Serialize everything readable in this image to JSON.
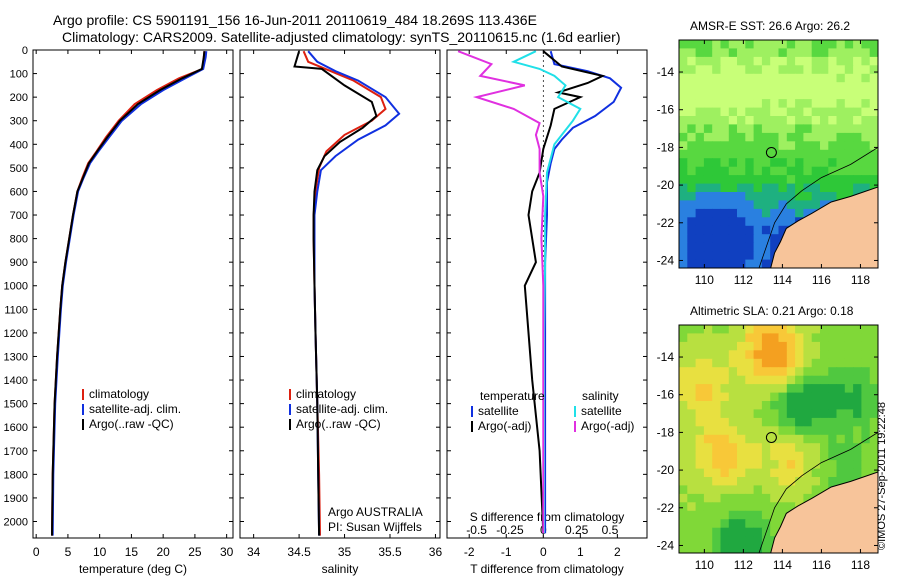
{
  "header": {
    "title_line1": "Argo profile: CS 5901191_156 16-Jun-2011 20110619_484 18.269S 113.436E",
    "title_line2": "Climatology: CARS2009. Satellite-adjusted climatology: synTS_20110615.nc (1.6d earlier)"
  },
  "credit": "©IMOS 27-Sep-2011 19:22:48",
  "colors": {
    "climatology": "#dd2010",
    "satellite": "#1030e0",
    "argo": "#000000",
    "salinity_satellite": "#20e0e8",
    "salinity_argo": "#e030e0",
    "land": "#f7c49a"
  },
  "chart_data": [
    {
      "type": "line",
      "xlabel": "temperature (deg C)",
      "ylabel": "",
      "xlim": [
        -0.5,
        31
      ],
      "ylim": [
        2070,
        0
      ],
      "xticks": [
        "0",
        "5",
        "10",
        "15",
        "20",
        "25",
        "30"
      ],
      "yticks": [
        "0",
        "100",
        "200",
        "300",
        "400",
        "500",
        "600",
        "700",
        "800",
        "900",
        "1000",
        "1100",
        "1200",
        "1300",
        "1400",
        "1500",
        "1600",
        "1700",
        "1800",
        "1900",
        "2000"
      ],
      "legend": [
        "climatology",
        "satellite-adj. clim.",
        "Argo(..raw -QC)"
      ],
      "series": [
        {
          "name": "climatology",
          "color": "#dd2010",
          "x": [
            26.5,
            26.4,
            26.2,
            22.5,
            19,
            15.5,
            13,
            11,
            9.5,
            8.2,
            7.3,
            6.5,
            5.8,
            5.2,
            4.6,
            4.1,
            3.8,
            3.3,
            2.9,
            2.6,
            2.5
          ],
          "y": [
            5,
            30,
            80,
            120,
            170,
            230,
            300,
            370,
            430,
            480,
            540,
            600,
            700,
            800,
            900,
            1000,
            1100,
            1300,
            1500,
            1800,
            2060
          ]
        },
        {
          "name": "satellite-adj. clim.",
          "color": "#1030e0",
          "x": [
            26.8,
            26.7,
            26.3,
            23.5,
            20,
            16.5,
            13.5,
            11.5,
            9.8,
            8.5,
            7.5,
            6.6,
            5.9,
            5.3,
            4.7,
            4.2,
            3.9,
            3.4,
            3,
            2.7,
            2.6
          ],
          "y": [
            5,
            30,
            80,
            120,
            170,
            230,
            300,
            370,
            430,
            480,
            540,
            600,
            700,
            800,
            900,
            1000,
            1100,
            1300,
            1500,
            1800,
            2060
          ]
        },
        {
          "name": "Argo(..raw -QC)",
          "color": "#000000",
          "x": [
            26.5,
            26.4,
            26.1,
            23,
            19.5,
            16,
            13.2,
            11.2,
            9.6,
            8.3,
            7.4,
            6.5,
            5.8,
            5.2,
            4.6,
            4.1,
            3.8,
            3.3,
            2.9,
            2.6,
            2.5
          ],
          "y": [
            5,
            30,
            80,
            120,
            170,
            230,
            300,
            370,
            430,
            480,
            540,
            600,
            700,
            800,
            900,
            1000,
            1100,
            1300,
            1500,
            1800,
            2060
          ]
        }
      ]
    },
    {
      "type": "line",
      "xlabel": "salinity",
      "ylabel": "",
      "xlim": [
        33.85,
        36.05
      ],
      "ylim": [
        2070,
        0
      ],
      "xticks": [
        "34",
        "34.5",
        "35",
        "35.5",
        "36"
      ],
      "legend": [
        "climatology",
        "satellite-adj. clim.",
        "Argo(..raw -QC)"
      ],
      "annotations": [
        "Argo AUSTRALIA",
        "PI: Susan Wijffels"
      ],
      "series": [
        {
          "name": "climatology",
          "color": "#dd2010",
          "x": [
            34.55,
            34.6,
            34.85,
            35.1,
            35.4,
            35.45,
            35.3,
            35.0,
            34.8,
            34.72,
            34.68,
            34.66,
            34.66,
            34.67,
            34.68,
            34.7,
            34.72,
            34.73
          ],
          "y": [
            5,
            50,
            90,
            130,
            200,
            250,
            300,
            360,
            430,
            500,
            600,
            700,
            800,
            1000,
            1200,
            1500,
            1800,
            2060
          ]
        },
        {
          "name": "satellite-adj. clim.",
          "color": "#1030e0",
          "x": [
            34.6,
            34.7,
            34.9,
            35.15,
            35.45,
            35.6,
            35.45,
            35.15,
            34.9,
            34.74,
            34.7,
            34.67,
            34.67,
            34.67,
            34.68,
            34.7,
            34.71,
            34.72
          ],
          "y": [
            5,
            50,
            90,
            130,
            200,
            270,
            320,
            380,
            450,
            510,
            600,
            700,
            800,
            1000,
            1200,
            1500,
            1800,
            2060
          ]
        },
        {
          "name": "Argo(..raw -QC)",
          "color": "#000000",
          "x": [
            34.5,
            34.45,
            34.75,
            35.0,
            35.3,
            35.35,
            35.2,
            34.95,
            34.78,
            34.7,
            34.67,
            34.66,
            34.66,
            34.67,
            34.68,
            34.7,
            34.71,
            34.72
          ],
          "y": [
            5,
            70,
            80,
            150,
            220,
            280,
            330,
            390,
            450,
            510,
            600,
            700,
            800,
            1000,
            1200,
            1500,
            1800,
            2060
          ]
        }
      ]
    },
    {
      "type": "line",
      "xlabel": "T difference from climatology",
      "xlabel2": "S difference from climatology",
      "ylabel": "",
      "xlim": [
        -2.6,
        2.8
      ],
      "ylim": [
        2070,
        0
      ],
      "xticks": [
        "-2",
        "-1",
        "0",
        "1",
        "2"
      ],
      "xticks_top": [
        "-0.5",
        "-0.25",
        "0",
        "0.25",
        "0.5"
      ],
      "legend_headers": [
        "temperature",
        "salinity"
      ],
      "legend": [
        "satellite",
        "Argo(-adj)",
        "satellite",
        "Argo(-adj)"
      ],
      "series": [
        {
          "name": "satellite",
          "group": "temperature",
          "color": "#1030e0",
          "x": [
            0.2,
            0.3,
            1.2,
            1.8,
            2.1,
            1.9,
            1.4,
            0.8,
            0.5,
            0.3,
            0.2,
            0.1,
            0.1,
            0.05,
            0.05,
            0.05,
            0.05
          ],
          "y": [
            5,
            60,
            90,
            120,
            160,
            220,
            280,
            330,
            380,
            420,
            480,
            560,
            700,
            900,
            1200,
            1600,
            2050
          ]
        },
        {
          "name": "Argo(-adj)",
          "group": "temperature",
          "color": "#000000",
          "x": [
            0,
            0.5,
            1.6,
            1.2,
            0.4,
            1.0,
            0.3,
            0.2,
            0,
            -0.1,
            -0.3,
            -0.4,
            -0.2,
            -0.5,
            -0.3,
            -0.1,
            0
          ],
          "y": [
            5,
            70,
            110,
            140,
            180,
            200,
            250,
            320,
            420,
            520,
            600,
            700,
            900,
            1000,
            1400,
            1700,
            2050
          ]
        },
        {
          "name": "satellite",
          "group": "salinity",
          "color": "#20e0e8",
          "x": [
            -0.2,
            -0.8,
            -0.1,
            0.3,
            0.6,
            0.4,
            1.0,
            0.8,
            0.3,
            0.1,
            0.05,
            0.05,
            0.02,
            0.02,
            0.02
          ],
          "y": [
            5,
            50,
            80,
            110,
            150,
            200,
            250,
            300,
            400,
            520,
            700,
            900,
            1200,
            1600,
            2050
          ]
        },
        {
          "name": "Argo(-adj)",
          "group": "salinity",
          "color": "#e030e0",
          "x": [
            -2.3,
            -1.4,
            -1.7,
            -0.5,
            -1.8,
            -0.8,
            -0.1,
            -0.2,
            -0.1,
            -0.1,
            0,
            -0.05,
            0,
            0,
            0
          ],
          "y": [
            5,
            60,
            110,
            150,
            200,
            250,
            310,
            360,
            420,
            520,
            620,
            800,
            1000,
            1400,
            2050
          ]
        }
      ]
    },
    {
      "type": "heatmap",
      "title": "AMSR-E SST: 26.6 Argo: 26.2",
      "xticks": [
        "110",
        "112",
        "114",
        "116",
        "118"
      ],
      "yticks": [
        "-14",
        "-16",
        "-18",
        "-20",
        "-22",
        "-24"
      ],
      "xlim": [
        108.7,
        118.9
      ],
      "ylim": [
        -24.4,
        -12.3
      ],
      "argo_position": {
        "lon": 113.436,
        "lat": -18.269
      }
    },
    {
      "type": "heatmap",
      "title": "Altimetric SLA: 0.21 Argo: 0.18",
      "xticks": [
        "110",
        "112",
        "114",
        "116",
        "118"
      ],
      "yticks": [
        "-14",
        "-16",
        "-18",
        "-20",
        "-22",
        "-24"
      ],
      "xlim": [
        108.7,
        118.9
      ],
      "ylim": [
        -24.4,
        -12.3
      ],
      "argo_position": {
        "lon": 113.436,
        "lat": -18.269
      }
    }
  ]
}
